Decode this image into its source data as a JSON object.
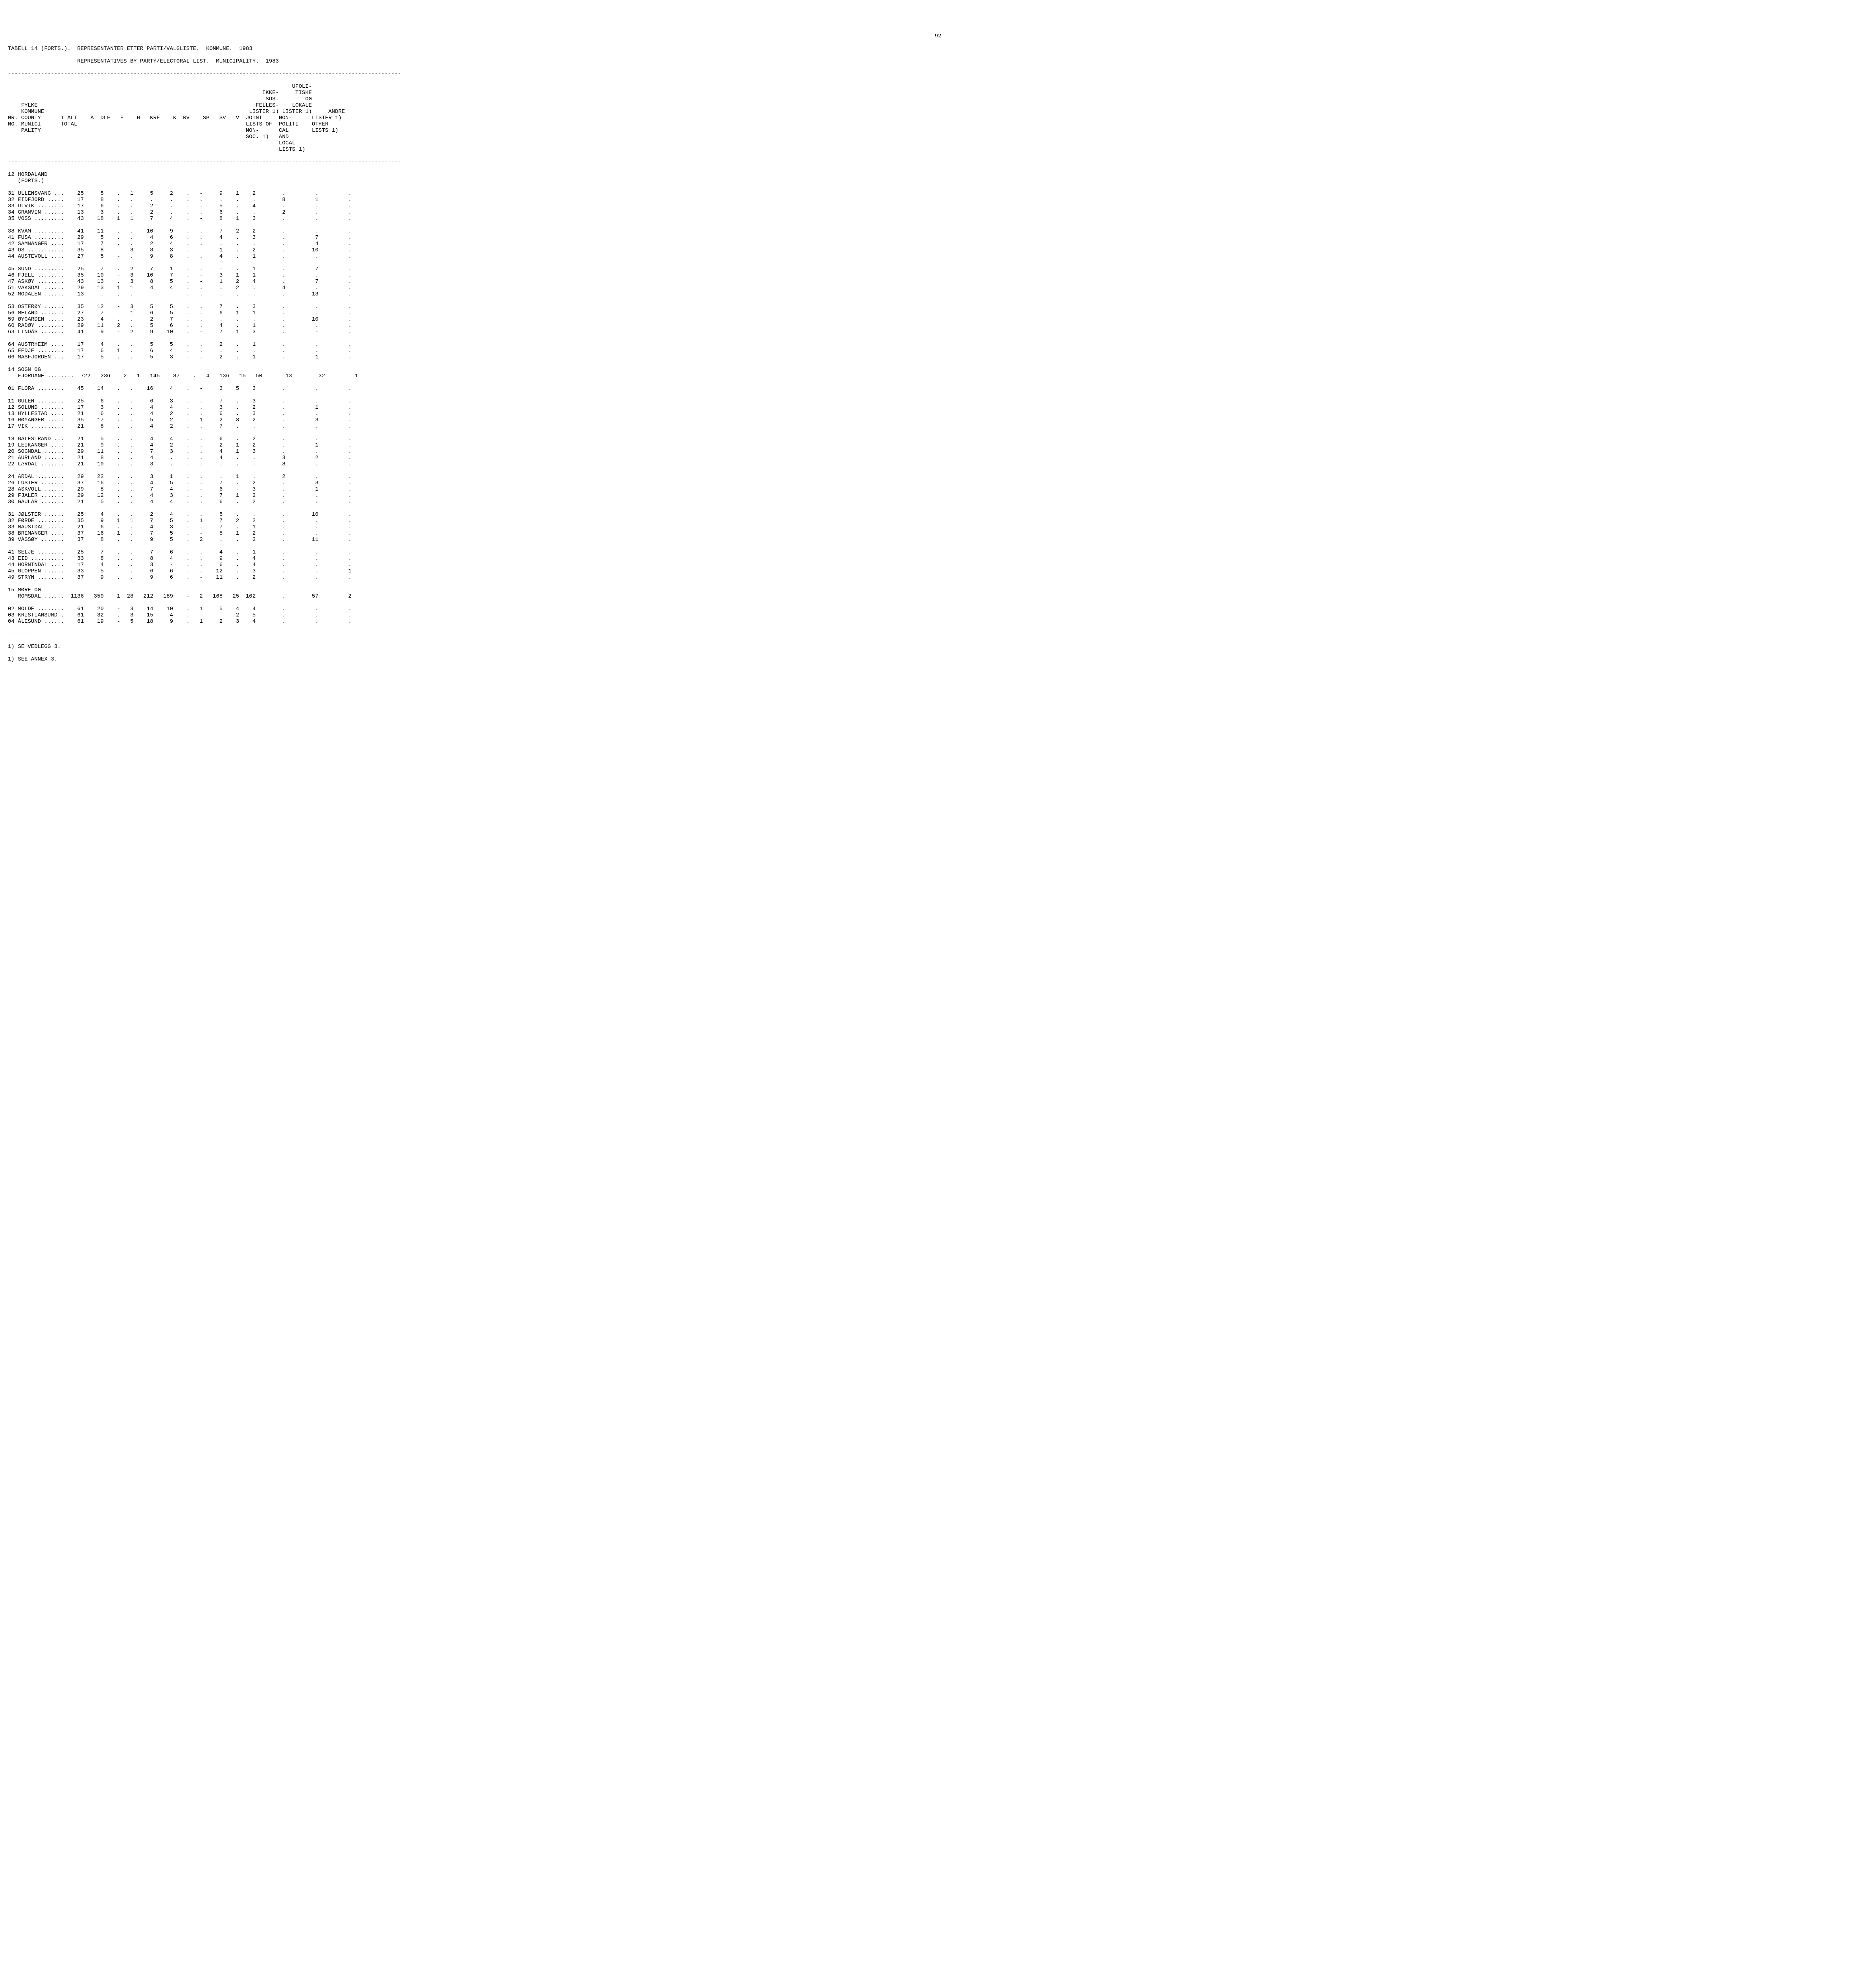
{
  "page_number": "92",
  "title_line": "TABELL 14 (FORTS.).  REPRESENTANTER ETTER PARTI/VALGLISTE.  KOMMUNE.  1983",
  "title_line2": "                     REPRESENTATIVES BY PARTY/ELECTORAL LIST.  MUNICIPALITY.  1983",
  "header": {
    "col_fylke1": "FYLKE",
    "col_fylke2": "KOMMUNE",
    "col_nr1": "NR. COUNTY",
    "col_nr2": "NO. MUNICI-",
    "col_nr3": "    PALITY",
    "col_ialt1": "I ALT",
    "col_ialt2": "TOTAL",
    "col_a": "A",
    "col_dlf": "DLF",
    "col_f": "F",
    "col_h": "H",
    "col_krf": "KRF",
    "col_k": "K",
    "col_rv": "RV",
    "col_sp": "SP",
    "col_sv": "SV",
    "col_v": "V",
    "col_ikke1": "IKKE-",
    "col_ikke2": "SOS.",
    "col_ikke3": "FELLES-",
    "col_ikke4": "LISTER 1)",
    "col_ikke5": "JOINT",
    "col_ikke6": "LISTS OF",
    "col_ikke7": "NON-",
    "col_ikke8": "SOC. 1)",
    "col_upol1": "UPOLI-",
    "col_upol2": "TISKE",
    "col_upol3": "OG",
    "col_upol4": "LOKALE",
    "col_upol5": "LISTER 1)",
    "col_upol6": "NON-",
    "col_upol7": "POLITI-",
    "col_upol8": "CAL",
    "col_upol9": "AND",
    "col_upol10": "LOCAL",
    "col_upol11": "LISTS 1)",
    "col_andre1": "ANDRE",
    "col_andre2": "LISTER 1)",
    "col_andre3": "OTHER",
    "col_andre4": "LISTS 1)"
  },
  "sections": [
    {
      "heading": "12 HORDALAND",
      "heading2": "   (FORTS.)"
    },
    {
      "heading": "14 SOGN OG"
    },
    {
      "heading": "15 MØRE OG"
    }
  ],
  "rows": [
    {
      "n": "31",
      "name": "ULLENSVANG ...",
      "t": "25",
      "a": "5",
      "dlf": ".",
      "f": "1",
      "h": "5",
      "krf": "2",
      "k": ".",
      "rv": "-",
      "sp": "9",
      "sv": "1",
      "v": "2",
      "ikke": ".",
      "upol": ".",
      "andre": "."
    },
    {
      "n": "32",
      "name": "EIDFJORD .....",
      "t": "17",
      "a": "8",
      "dlf": ".",
      "f": ".",
      "h": ".",
      "krf": ".",
      "k": ".",
      "rv": ".",
      "sp": ".",
      "sv": ".",
      "v": ".",
      "ikke": "8",
      "upol": "1",
      "andre": "."
    },
    {
      "n": "33",
      "name": "ULVIK ........",
      "t": "17",
      "a": "6",
      "dlf": ".",
      "f": ".",
      "h": "2",
      "krf": ".",
      "k": ".",
      "rv": ".",
      "sp": "5",
      "sv": ".",
      "v": "4",
      "ikke": ".",
      "upol": ".",
      "andre": "."
    },
    {
      "n": "34",
      "name": "GRANVIN ......",
      "t": "13",
      "a": "3",
      "dlf": ".",
      "f": ".",
      "h": "2",
      "krf": ".",
      "k": ".",
      "rv": ".",
      "sp": "6",
      "sv": ".",
      "v": ".",
      "ikke": "2",
      "upol": ".",
      "andre": "."
    },
    {
      "n": "35",
      "name": "VOSS .........",
      "t": "43",
      "a": "18",
      "dlf": "1",
      "f": "1",
      "h": "7",
      "krf": "4",
      "k": ".",
      "rv": "-",
      "sp": "8",
      "sv": "1",
      "v": "3",
      "ikke": ".",
      "upol": ".",
      "andre": "."
    },
    {
      "n": "38",
      "name": "KVAM .........",
      "t": "41",
      "a": "11",
      "dlf": ".",
      "f": ".",
      "h": "10",
      "krf": "9",
      "k": ".",
      "rv": ".",
      "sp": "7",
      "sv": "2",
      "v": "2",
      "ikke": ".",
      "upol": ".",
      "andre": "."
    },
    {
      "n": "41",
      "name": "FUSA .........",
      "t": "29",
      "a": "5",
      "dlf": ".",
      "f": ".",
      "h": "4",
      "krf": "6",
      "k": ".",
      "rv": ".",
      "sp": "4",
      "sv": ".",
      "v": "3",
      "ikke": ".",
      "upol": "7",
      "andre": "."
    },
    {
      "n": "42",
      "name": "SAMNANGER ....",
      "t": "17",
      "a": "7",
      "dlf": ".",
      "f": ".",
      "h": "2",
      "krf": "4",
      "k": ".",
      "rv": ".",
      "sp": ".",
      "sv": ".",
      "v": ".",
      "ikke": ".",
      "upol": "4",
      "andre": "."
    },
    {
      "n": "43",
      "name": "OS ...........",
      "t": "35",
      "a": "8",
      "dlf": "-",
      "f": "3",
      "h": "8",
      "krf": "3",
      "k": ".",
      "rv": "-",
      "sp": "1",
      "sv": ".",
      "v": "2",
      "ikke": ".",
      "upol": "10",
      "andre": "."
    },
    {
      "n": "44",
      "name": "AUSTEVOLL ....",
      "t": "27",
      "a": "5",
      "dlf": "-",
      "f": ".",
      "h": "9",
      "krf": "8",
      "k": ".",
      "rv": ".",
      "sp": "4",
      "sv": ".",
      "v": "1",
      "ikke": ".",
      "upol": ".",
      "andre": "."
    },
    {
      "n": "45",
      "name": "SUND .........",
      "t": "25",
      "a": "7",
      "dlf": ".",
      "f": "2",
      "h": "7",
      "krf": "1",
      "k": ".",
      "rv": ".",
      "sp": "-",
      "sv": ".",
      "v": "1",
      "ikke": ".",
      "upol": "7",
      "andre": "."
    },
    {
      "n": "46",
      "name": "FJELL ........",
      "t": "35",
      "a": "10",
      "dlf": "-",
      "f": "3",
      "h": "10",
      "krf": "7",
      "k": ".",
      "rv": "-",
      "sp": "3",
      "sv": "1",
      "v": "1",
      "ikke": ".",
      "upol": ".",
      "andre": "."
    },
    {
      "n": "47",
      "name": "ASKØY ........",
      "t": "43",
      "a": "13",
      "dlf": ".",
      "f": "3",
      "h": "8",
      "krf": "5",
      "k": ".",
      "rv": "-",
      "sp": "1",
      "sv": "2",
      "v": "4",
      "ikke": ".",
      "upol": "7",
      "andre": "."
    },
    {
      "n": "51",
      "name": "VAKSDAL ......",
      "t": "29",
      "a": "13",
      "dlf": "1",
      "f": "1",
      "h": "4",
      "krf": "4",
      "k": ".",
      "rv": ".",
      "sp": ".",
      "sv": "2",
      "v": ".",
      "ikke": "4",
      "upol": ".",
      "andre": "."
    },
    {
      "n": "52",
      "name": "MODALEN ......",
      "t": "13",
      "a": ".",
      "dlf": ".",
      "f": ".",
      "h": "-",
      "krf": "-",
      "k": ".",
      "rv": ".",
      "sp": ".",
      "sv": ".",
      "v": ".",
      "ikke": ".",
      "upol": "13",
      "andre": "."
    },
    {
      "n": "53",
      "name": "OSTERØY ......",
      "t": "35",
      "a": "12",
      "dlf": "-",
      "f": "3",
      "h": "5",
      "krf": "5",
      "k": ".",
      "rv": ".",
      "sp": "7",
      "sv": ".",
      "v": "3",
      "ikke": ".",
      "upol": ".",
      "andre": "."
    },
    {
      "n": "56",
      "name": "MELAND .......",
      "t": "27",
      "a": "7",
      "dlf": "-",
      "f": "1",
      "h": "6",
      "krf": "5",
      "k": ".",
      "rv": ".",
      "sp": "6",
      "sv": "1",
      "v": "1",
      "ikke": ".",
      "upol": ".",
      "andre": "."
    },
    {
      "n": "59",
      "name": "ØYGARDEN .....",
      "t": "23",
      "a": "4",
      "dlf": ".",
      "f": ".",
      "h": "2",
      "krf": "7",
      "k": ".",
      "rv": ".",
      "sp": ".",
      "sv": ".",
      "v": ".",
      "ikke": ".",
      "upol": "10",
      "andre": "."
    },
    {
      "n": "60",
      "name": "RADØY ........",
      "t": "29",
      "a": "11",
      "dlf": "2",
      "f": ".",
      "h": "5",
      "krf": "6",
      "k": ".",
      "rv": ".",
      "sp": "4",
      "sv": ".",
      "v": "1",
      "ikke": ".",
      "upol": ".",
      "andre": "."
    },
    {
      "n": "63",
      "name": "LINDÅS .......",
      "t": "41",
      "a": "9",
      "dlf": "-",
      "f": "2",
      "h": "9",
      "krf": "10",
      "k": ".",
      "rv": "-",
      "sp": "7",
      "sv": "1",
      "v": "3",
      "ikke": ".",
      "upol": "-",
      "andre": "."
    },
    {
      "n": "64",
      "name": "AUSTRHEIM ....",
      "t": "17",
      "a": "4",
      "dlf": ".",
      "f": ".",
      "h": "5",
      "krf": "5",
      "k": ".",
      "rv": ".",
      "sp": "2",
      "sv": ".",
      "v": "1",
      "ikke": ".",
      "upol": ".",
      "andre": "."
    },
    {
      "n": "65",
      "name": "FEDJE ........",
      "t": "17",
      "a": "6",
      "dlf": "1",
      "f": ".",
      "h": "6",
      "krf": "4",
      "k": ".",
      "rv": ".",
      "sp": ".",
      "sv": ".",
      "v": ".",
      "ikke": ".",
      "upol": ".",
      "andre": "."
    },
    {
      "n": "66",
      "name": "MASFJORDEN ...",
      "t": "17",
      "a": "5",
      "dlf": ".",
      "f": ".",
      "h": "5",
      "krf": "3",
      "k": ".",
      "rv": ".",
      "sp": "2",
      "sv": ".",
      "v": "1",
      "ikke": ".",
      "upol": "1",
      "andre": "."
    },
    {
      "n": "  ",
      "name": "FJORDANE ........",
      "t": "722",
      "a": "236",
      "dlf": "2",
      "f": "1",
      "h": "145",
      "krf": "87",
      "k": ".",
      "rv": "4",
      "sp": "136",
      "sv": "15",
      "v": "50",
      "ikke": "13",
      "upol": "32",
      "andre": "1"
    },
    {
      "n": "01",
      "name": "FLORA ........",
      "t": "45",
      "a": "14",
      "dlf": ".",
      "f": ".",
      "h": "16",
      "krf": "4",
      "k": ".",
      "rv": "-",
      "sp": "3",
      "sv": "5",
      "v": "3",
      "ikke": ".",
      "upol": ".",
      "andre": "."
    },
    {
      "n": "11",
      "name": "GULEN ........",
      "t": "25",
      "a": "6",
      "dlf": ".",
      "f": ".",
      "h": "6",
      "krf": "3",
      "k": ".",
      "rv": ".",
      "sp": "7",
      "sv": ".",
      "v": "3",
      "ikke": ".",
      "upol": ".",
      "andre": "."
    },
    {
      "n": "12",
      "name": "SOLUND .......",
      "t": "17",
      "a": "3",
      "dlf": ".",
      "f": ".",
      "h": "4",
      "krf": "4",
      "k": ".",
      "rv": ".",
      "sp": "3",
      "sv": ".",
      "v": "2",
      "ikke": ".",
      "upol": "1",
      "andre": "."
    },
    {
      "n": "13",
      "name": "HYLLESTAD ....",
      "t": "21",
      "a": "6",
      "dlf": ".",
      "f": ".",
      "h": "4",
      "krf": "2",
      "k": ".",
      "rv": ".",
      "sp": "6",
      "sv": ".",
      "v": "3",
      "ikke": ".",
      "upol": ".",
      "andre": "."
    },
    {
      "n": "16",
      "name": "HØYANGER .....",
      "t": "35",
      "a": "17",
      "dlf": ".",
      "f": ".",
      "h": "5",
      "krf": "2",
      "k": ".",
      "rv": "1",
      "sp": "2",
      "sv": "3",
      "v": "2",
      "ikke": ".",
      "upol": "3",
      "andre": "."
    },
    {
      "n": "17",
      "name": "VIK ..........",
      "t": "21",
      "a": "8",
      "dlf": ".",
      "f": ".",
      "h": "4",
      "krf": "2",
      "k": ".",
      "rv": ".",
      "sp": "7",
      "sv": ".",
      "v": ".",
      "ikke": ".",
      "upol": ".",
      "andre": "."
    },
    {
      "n": "18",
      "name": "BALESTRAND ...",
      "t": "21",
      "a": "5",
      "dlf": ".",
      "f": ".",
      "h": "4",
      "krf": "4",
      "k": ".",
      "rv": ".",
      "sp": "6",
      "sv": ".",
      "v": "2",
      "ikke": ".",
      "upol": ".",
      "andre": "."
    },
    {
      "n": "19",
      "name": "LEIKANGER ....",
      "t": "21",
      "a": "9",
      "dlf": ".",
      "f": ".",
      "h": "4",
      "krf": "2",
      "k": ".",
      "rv": ".",
      "sp": "2",
      "sv": "1",
      "v": "2",
      "ikke": ".",
      "upol": "1",
      "andre": "."
    },
    {
      "n": "20",
      "name": "SOGNDAL ......",
      "t": "29",
      "a": "11",
      "dlf": ".",
      "f": ".",
      "h": "7",
      "krf": "3",
      "k": ".",
      "rv": ".",
      "sp": "4",
      "sv": "1",
      "v": "3",
      "ikke": ".",
      "upol": ".",
      "andre": "."
    },
    {
      "n": "21",
      "name": "AURLAND ......",
      "t": "21",
      "a": "8",
      "dlf": ".",
      "f": ".",
      "h": "4",
      "krf": ".",
      "k": ".",
      "rv": ".",
      "sp": "4",
      "sv": ".",
      "v": ".",
      "ikke": "3",
      "upol": "2",
      "andre": "."
    },
    {
      "n": "22",
      "name": "LÆRDAL .......",
      "t": "21",
      "a": "10",
      "dlf": ".",
      "f": ".",
      "h": "3",
      "krf": ".",
      "k": ".",
      "rv": ".",
      "sp": ".",
      "sv": ".",
      "v": ".",
      "ikke": "8",
      "upol": ".",
      "andre": "."
    },
    {
      "n": "24",
      "name": "ÅRDAL ........",
      "t": "29",
      "a": "22",
      "dlf": ".",
      "f": ".",
      "h": "3",
      "krf": "1",
      "k": ".",
      "rv": ".",
      "sp": ".",
      "sv": "1",
      "v": ".",
      "ikke": "2",
      "upol": ".",
      "andre": "."
    },
    {
      "n": "26",
      "name": "LUSTER .......",
      "t": "37",
      "a": "16",
      "dlf": ".",
      "f": ".",
      "h": "4",
      "krf": "5",
      "k": ".",
      "rv": ".",
      "sp": "7",
      "sv": ".",
      "v": "2",
      "ikke": ".",
      "upol": "3",
      "andre": "."
    },
    {
      "n": "28",
      "name": "ASKVOLL ......",
      "t": "29",
      "a": "8",
      "dlf": ".",
      "f": ".",
      "h": "7",
      "krf": "4",
      "k": ".",
      "rv": "-",
      "sp": "6",
      "sv": "-",
      "v": "3",
      "ikke": ".",
      "upol": "1",
      "andre": "."
    },
    {
      "n": "29",
      "name": "FJALER .......",
      "t": "29",
      "a": "12",
      "dlf": ".",
      "f": ".",
      "h": "4",
      "krf": "3",
      "k": ".",
      "rv": ".",
      "sp": "7",
      "sv": "1",
      "v": "2",
      "ikke": ".",
      "upol": ".",
      "andre": "."
    },
    {
      "n": "30",
      "name": "GAULAR .......",
      "t": "21",
      "a": "5",
      "dlf": ".",
      "f": ".",
      "h": "4",
      "krf": "4",
      "k": ".",
      "rv": ".",
      "sp": "6",
      "sv": ".",
      "v": "2",
      "ikke": ".",
      "upol": ".",
      "andre": "."
    },
    {
      "n": "31",
      "name": "JØLSTER ......",
      "t": "25",
      "a": "4",
      "dlf": ".",
      "f": ".",
      "h": "2",
      "krf": "4",
      "k": ".",
      "rv": ".",
      "sp": "5",
      "sv": ".",
      "v": ".",
      "ikke": ".",
      "upol": "10",
      "andre": "."
    },
    {
      "n": "32",
      "name": "FØRDE ........",
      "t": "35",
      "a": "9",
      "dlf": "1",
      "f": "1",
      "h": "7",
      "krf": "5",
      "k": ".",
      "rv": "1",
      "sp": "7",
      "sv": "2",
      "v": "2",
      "ikke": ".",
      "upol": ".",
      "andre": "."
    },
    {
      "n": "33",
      "name": "NAUSTDAL .....",
      "t": "21",
      "a": "6",
      "dlf": ".",
      "f": ".",
      "h": "4",
      "krf": "3",
      "k": ".",
      "rv": ".",
      "sp": "7",
      "sv": ".",
      "v": "1",
      "ikke": ".",
      "upol": ".",
      "andre": "."
    },
    {
      "n": "38",
      "name": "BREMANGER ....",
      "t": "37",
      "a": "16",
      "dlf": "1",
      "f": ".",
      "h": "7",
      "krf": "5",
      "k": ".",
      "rv": "-",
      "sp": "5",
      "sv": "1",
      "v": "2",
      "ikke": ".",
      "upol": ".",
      "andre": "."
    },
    {
      "n": "39",
      "name": "VÅGSØY .......",
      "t": "37",
      "a": "8",
      "dlf": ".",
      "f": ".",
      "h": "9",
      "krf": "5",
      "k": ".",
      "rv": "2",
      "sp": ".",
      "sv": ".",
      "v": "2",
      "ikke": ".",
      "upol": "11",
      "andre": "."
    },
    {
      "n": "41",
      "name": "SELJE ........",
      "t": "25",
      "a": "7",
      "dlf": ".",
      "f": ".",
      "h": "7",
      "krf": "6",
      "k": ".",
      "rv": ".",
      "sp": "4",
      "sv": ".",
      "v": "1",
      "ikke": ".",
      "upol": ".",
      "andre": "."
    },
    {
      "n": "43",
      "name": "EID ..........",
      "t": "33",
      "a": "8",
      "dlf": ".",
      "f": ".",
      "h": "8",
      "krf": "4",
      "k": ".",
      "rv": ".",
      "sp": "9",
      "sv": ".",
      "v": "4",
      "ikke": ".",
      "upol": ".",
      "andre": "."
    },
    {
      "n": "44",
      "name": "HORNINDAL ....",
      "t": "17",
      "a": "4",
      "dlf": ".",
      "f": ".",
      "h": "3",
      "krf": "-",
      "k": ".",
      "rv": ".",
      "sp": "6",
      "sv": ".",
      "v": "4",
      "ikke": ".",
      "upol": ".",
      "andre": "."
    },
    {
      "n": "45",
      "name": "GLOPPEN ......",
      "t": "33",
      "a": "5",
      "dlf": "-",
      "f": ".",
      "h": "6",
      "krf": "6",
      "k": ".",
      "rv": ".",
      "sp": "12",
      "sv": ".",
      "v": "3",
      "ikke": ".",
      "upol": ".",
      "andre": "1"
    },
    {
      "n": "49",
      "name": "STRYN ........",
      "t": "37",
      "a": "9",
      "dlf": ".",
      "f": ".",
      "h": "9",
      "krf": "6",
      "k": ".",
      "rv": "-",
      "sp": "11",
      "sv": ".",
      "v": "2",
      "ikke": ".",
      "upol": ".",
      "andre": "."
    },
    {
      "n": "  ",
      "name": "ROMSDAL ......",
      "t": "1136",
      "a": "350",
      "dlf": "1",
      "f": "28",
      "h": "212",
      "krf": "189",
      "k": "-",
      "rv": "2",
      "sp": "168",
      "sv": "25",
      "v": "102",
      "ikke": ".",
      "upol": "57",
      "andre": "2"
    },
    {
      "n": "02",
      "name": "MOLDE ........",
      "t": "61",
      "a": "20",
      "dlf": "-",
      "f": "3",
      "h": "14",
      "krf": "10",
      "k": ".",
      "rv": "1",
      "sp": "5",
      "sv": "4",
      "v": "4",
      "ikke": ".",
      "upol": ".",
      "andre": "."
    },
    {
      "n": "03",
      "name": "KRISTIANSUND .",
      "t": "61",
      "a": "32",
      "dlf": ".",
      "f": "3",
      "h": "15",
      "krf": "4",
      "k": ".",
      "rv": "-",
      "sp": "-",
      "sv": "2",
      "v": "5",
      "ikke": ".",
      "upol": ".",
      "andre": "."
    },
    {
      "n": "04",
      "name": "ÅLESUND ......",
      "t": "61",
      "a": "19",
      "dlf": "-",
      "f": "5",
      "h": "18",
      "krf": "9",
      "k": ".",
      "rv": "1",
      "sp": "2",
      "sv": "3",
      "v": "4",
      "ikke": ".",
      "upol": ".",
      "andre": "."
    }
  ],
  "footer1": "-------",
  "footer2": "1) SE VEDLEGG 3.",
  "footer3": "1) SEE ANNEX 3."
}
